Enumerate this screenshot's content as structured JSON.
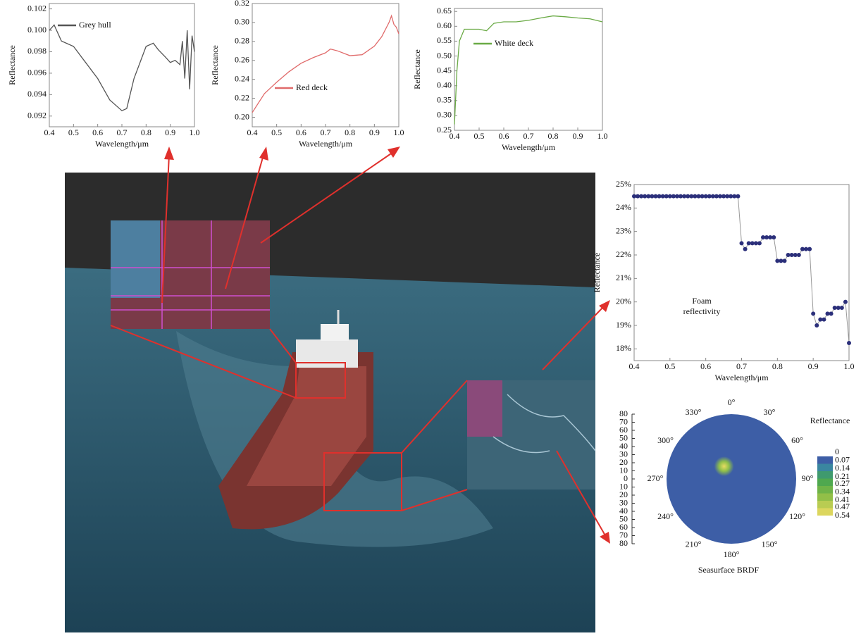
{
  "chart_data": [
    {
      "type": "line",
      "xlabel": "Wavelength/μm",
      "ylabel": "Reflectance",
      "x": [
        0.4,
        0.42,
        0.45,
        0.5,
        0.55,
        0.6,
        0.65,
        0.7,
        0.72,
        0.75,
        0.8,
        0.83,
        0.85,
        0.88,
        0.9,
        0.92,
        0.94,
        0.95,
        0.96,
        0.97,
        0.98,
        0.99,
        1.0
      ],
      "series": [
        {
          "name": "Grey hull",
          "color": "#555555",
          "values": [
            0.1,
            0.1005,
            0.099,
            0.0985,
            0.097,
            0.0955,
            0.0935,
            0.0925,
            0.0927,
            0.0955,
            0.0985,
            0.0988,
            0.0982,
            0.0975,
            0.097,
            0.0972,
            0.0968,
            0.099,
            0.0955,
            0.1,
            0.0945,
            0.0995,
            0.098
          ]
        }
      ],
      "xlim": [
        0.4,
        1.0
      ],
      "xticks": [
        0.4,
        0.5,
        0.6,
        0.7,
        0.8,
        0.9,
        {
          "value": 1.0,
          "label": "1.0"
        }
      ],
      "ylim": [
        0.091,
        0.1025
      ],
      "yticks": [
        0.092,
        0.094,
        0.096,
        0.098,
        {
          "value": 0.1,
          "label": "0.100"
        },
        0.102
      ]
    },
    {
      "type": "line",
      "xlabel": "Wavelength/μm",
      "ylabel": "Reflectance",
      "x": [
        0.4,
        0.45,
        0.5,
        0.55,
        0.6,
        0.65,
        0.7,
        0.72,
        0.75,
        0.8,
        0.85,
        0.9,
        0.93,
        0.96,
        0.97,
        0.98,
        0.99,
        1.0
      ],
      "series": [
        {
          "name": "Red deck",
          "color": "#e06a6a",
          "values": [
            0.205,
            0.225,
            0.237,
            0.248,
            0.257,
            0.263,
            0.268,
            0.272,
            0.27,
            0.265,
            0.266,
            0.275,
            0.285,
            0.3,
            0.307,
            0.298,
            0.295,
            0.288
          ]
        }
      ],
      "xlim": [
        0.4,
        1.0
      ],
      "xticks": [
        0.4,
        0.5,
        0.6,
        0.7,
        0.8,
        0.9,
        {
          "value": 1.0,
          "label": "1.0"
        }
      ],
      "ylim": [
        0.19,
        0.32
      ],
      "yticks": [
        {
          "value": 0.2,
          "label": "0.20"
        },
        0.22,
        0.24,
        0.26,
        0.28,
        {
          "value": 0.3,
          "label": "0.30"
        },
        0.32
      ]
    },
    {
      "type": "line",
      "xlabel": "Wavelength/μm",
      "ylabel": "Reflectance",
      "x": [
        0.4,
        0.41,
        0.42,
        0.44,
        0.5,
        0.53,
        0.56,
        0.6,
        0.65,
        0.7,
        0.75,
        0.8,
        0.85,
        0.9,
        0.95,
        1.0
      ],
      "series": [
        {
          "name": "White deck",
          "color": "#6aaa45",
          "values": [
            0.27,
            0.45,
            0.55,
            0.59,
            0.59,
            0.585,
            0.61,
            0.615,
            0.615,
            0.62,
            0.628,
            0.635,
            0.632,
            0.628,
            0.625,
            0.615
          ]
        }
      ],
      "xlim": [
        0.4,
        1.0
      ],
      "xticks": [
        0.4,
        0.5,
        0.6,
        0.7,
        0.8,
        0.9,
        {
          "value": 1.0,
          "label": "1.0"
        }
      ],
      "ylim": [
        0.25,
        0.66
      ],
      "yticks": [
        0.25,
        {
          "value": 0.3,
          "label": "0.30"
        },
        0.35,
        {
          "value": 0.4,
          "label": "0.40"
        },
        0.45,
        {
          "value": 0.5,
          "label": "0.50"
        },
        0.55,
        {
          "value": 0.6,
          "label": "0.60"
        },
        0.65
      ]
    },
    {
      "type": "line",
      "markers": true,
      "xlabel": "Wavelength/μm",
      "ylabel": "Reflectance",
      "annotation": [
        "Foam",
        "reflectivity"
      ],
      "x": [
        0.4,
        0.41,
        0.42,
        0.43,
        0.44,
        0.45,
        0.46,
        0.47,
        0.48,
        0.49,
        0.5,
        0.51,
        0.52,
        0.53,
        0.54,
        0.55,
        0.56,
        0.57,
        0.58,
        0.59,
        0.6,
        0.61,
        0.62,
        0.63,
        0.64,
        0.65,
        0.66,
        0.67,
        0.68,
        0.69,
        0.7,
        0.71,
        0.72,
        0.73,
        0.74,
        0.75,
        0.76,
        0.77,
        0.78,
        0.79,
        0.8,
        0.81,
        0.82,
        0.83,
        0.84,
        0.85,
        0.86,
        0.87,
        0.88,
        0.89,
        0.9,
        0.91,
        0.92,
        0.93,
        0.94,
        0.95,
        0.96,
        0.97,
        0.98,
        0.99,
        1.0
      ],
      "series": [
        {
          "color": "#2b2f7a",
          "values": [
            24.5,
            24.5,
            24.5,
            24.5,
            24.5,
            24.5,
            24.5,
            24.5,
            24.5,
            24.5,
            24.5,
            24.5,
            24.5,
            24.5,
            24.5,
            24.5,
            24.5,
            24.5,
            24.5,
            24.5,
            24.5,
            24.5,
            24.5,
            24.5,
            24.5,
            24.5,
            24.5,
            24.5,
            24.5,
            24.5,
            22.5,
            22.25,
            22.5,
            22.5,
            22.5,
            22.5,
            22.75,
            22.75,
            22.75,
            22.75,
            21.75,
            21.75,
            21.75,
            22.0,
            22.0,
            22.0,
            22.0,
            22.25,
            22.25,
            22.25,
            19.5,
            19.0,
            19.25,
            19.25,
            19.5,
            19.5,
            19.75,
            19.75,
            19.75,
            20.0,
            18.25
          ]
        }
      ],
      "xlim": [
        0.4,
        1.0
      ],
      "xticks": [
        0.4,
        0.5,
        0.6,
        0.7,
        0.8,
        0.9,
        {
          "value": 1.0,
          "label": "1.0"
        }
      ],
      "ylim": [
        17.5,
        25.0
      ],
      "yticks": [
        {
          "value": 18,
          "label": "18%"
        },
        {
          "value": 19,
          "label": "19%"
        },
        {
          "value": 20,
          "label": "20%"
        },
        {
          "value": 21,
          "label": "21%"
        },
        {
          "value": 22,
          "label": "22%"
        },
        {
          "value": 23,
          "label": "23%"
        },
        {
          "value": 24,
          "label": "24%"
        },
        {
          "value": 25,
          "label": "25%"
        }
      ]
    },
    {
      "type": "polar",
      "title": "Seasurface BRDF",
      "color": "#3d5ea6",
      "angle_ticks": [
        {
          "value": 0,
          "label": "0°"
        },
        {
          "value": 30,
          "label": "30°"
        },
        {
          "value": 60,
          "label": "60°"
        },
        {
          "value": 90,
          "label": "90°"
        },
        {
          "value": 120,
          "label": "120°"
        },
        {
          "value": 150,
          "label": "150°"
        },
        {
          "value": 180,
          "label": "180°"
        },
        {
          "value": 210,
          "label": "210°"
        },
        {
          "value": 240,
          "label": "240°"
        },
        {
          "value": 270,
          "label": "270°"
        },
        {
          "value": 300,
          "label": "300°"
        },
        {
          "value": 330,
          "label": "330°"
        }
      ],
      "rlim": [
        0,
        80
      ],
      "rticks": [
        80,
        70,
        60,
        50,
        40,
        30,
        20,
        10,
        0,
        10,
        20,
        30,
        40,
        50,
        60,
        70,
        80
      ],
      "peak": {
        "azimuth": 330,
        "zenith": 18,
        "value": 0.54
      },
      "colorbar": {
        "title": "Reflectance",
        "ticks": [
          0,
          0.07,
          0.14,
          0.21,
          0.27,
          0.34,
          0.41,
          0.47,
          0.54
        ],
        "colors": [
          "#3d5ea6",
          "#3a86a0",
          "#3f9a6e",
          "#4fa84f",
          "#6fb348",
          "#92bf48",
          "#b9cc52",
          "#dcd65e"
        ]
      }
    }
  ]
}
